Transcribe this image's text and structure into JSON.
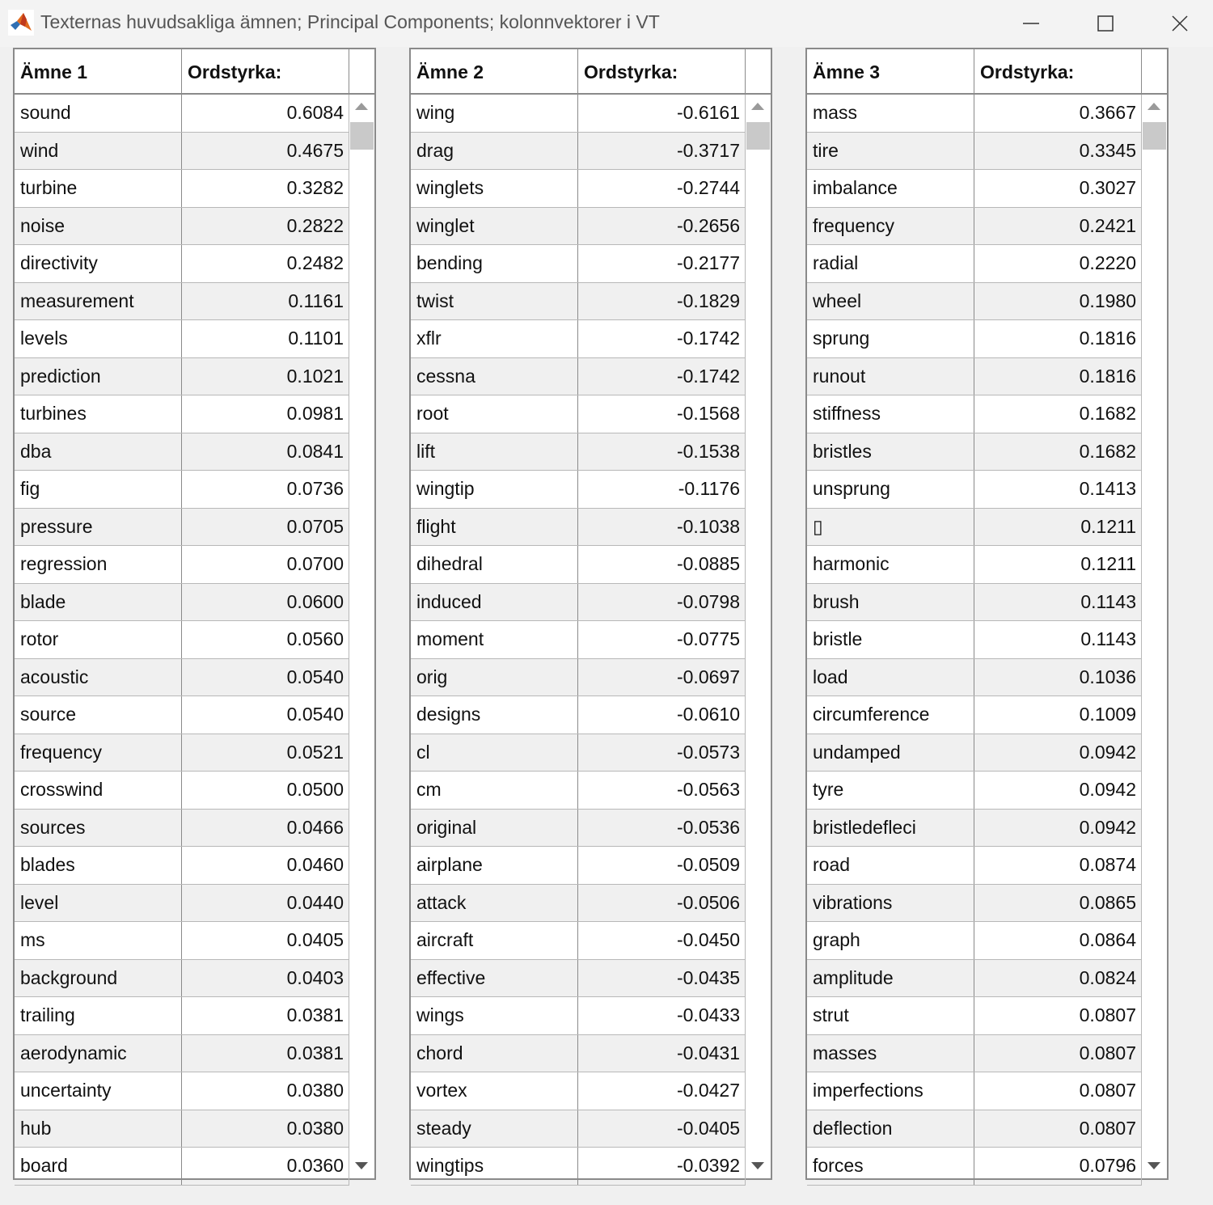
{
  "window": {
    "title": "Texternas huvudsakliga ämnen; Principal Components; kolonnvektorer i VT",
    "icons": [
      "matlab-logo-icon",
      "minimize-icon",
      "maximize-icon",
      "close-icon"
    ]
  },
  "tables": [
    {
      "headers": [
        "Ämne 1",
        "Ordstyrka:"
      ],
      "rows": [
        [
          "sound",
          "0.6084"
        ],
        [
          "wind",
          "0.4675"
        ],
        [
          "turbine",
          "0.3282"
        ],
        [
          "noise",
          "0.2822"
        ],
        [
          "directivity",
          "0.2482"
        ],
        [
          "measurement",
          "0.1161"
        ],
        [
          "levels",
          "0.1101"
        ],
        [
          "prediction",
          "0.1021"
        ],
        [
          "turbines",
          "0.0981"
        ],
        [
          "dba",
          "0.0841"
        ],
        [
          "fig",
          "0.0736"
        ],
        [
          "pressure",
          "0.0705"
        ],
        [
          "regression",
          "0.0700"
        ],
        [
          "blade",
          "0.0600"
        ],
        [
          "rotor",
          "0.0560"
        ],
        [
          "acoustic",
          "0.0540"
        ],
        [
          "source",
          "0.0540"
        ],
        [
          "frequency",
          "0.0521"
        ],
        [
          "crosswind",
          "0.0500"
        ],
        [
          "sources",
          "0.0466"
        ],
        [
          "blades",
          "0.0460"
        ],
        [
          "level",
          "0.0440"
        ],
        [
          "ms",
          "0.0405"
        ],
        [
          "background",
          "0.0403"
        ],
        [
          "trailing",
          "0.0381"
        ],
        [
          "aerodynamic",
          "0.0381"
        ],
        [
          "uncertainty",
          "0.0380"
        ],
        [
          "hub",
          "0.0380"
        ],
        [
          "board",
          "0.0360"
        ]
      ]
    },
    {
      "headers": [
        "Ämne 2",
        "Ordstyrka:"
      ],
      "rows": [
        [
          "wing",
          "-0.6161"
        ],
        [
          "drag",
          "-0.3717"
        ],
        [
          "winglets",
          "-0.2744"
        ],
        [
          "winglet",
          "-0.2656"
        ],
        [
          "bending",
          "-0.2177"
        ],
        [
          "twist",
          "-0.1829"
        ],
        [
          "xflr",
          "-0.1742"
        ],
        [
          "cessna",
          "-0.1742"
        ],
        [
          "root",
          "-0.1568"
        ],
        [
          "lift",
          "-0.1538"
        ],
        [
          "wingtip",
          "-0.1176"
        ],
        [
          "flight",
          "-0.1038"
        ],
        [
          "dihedral",
          "-0.0885"
        ],
        [
          "induced",
          "-0.0798"
        ],
        [
          "moment",
          "-0.0775"
        ],
        [
          "orig",
          "-0.0697"
        ],
        [
          "designs",
          "-0.0610"
        ],
        [
          "cl",
          "-0.0573"
        ],
        [
          "cm",
          "-0.0563"
        ],
        [
          "original",
          "-0.0536"
        ],
        [
          "airplane",
          "-0.0509"
        ],
        [
          "attack",
          "-0.0506"
        ],
        [
          "aircraft",
          "-0.0450"
        ],
        [
          "effective",
          "-0.0435"
        ],
        [
          "wings",
          "-0.0433"
        ],
        [
          "chord",
          "-0.0431"
        ],
        [
          "vortex",
          "-0.0427"
        ],
        [
          "steady",
          "-0.0405"
        ],
        [
          "wingtips",
          "-0.0392"
        ]
      ]
    },
    {
      "headers": [
        "Ämne 3",
        "Ordstyrka:"
      ],
      "rows": [
        [
          "mass",
          "0.3667"
        ],
        [
          "tire",
          "0.3345"
        ],
        [
          "imbalance",
          "0.3027"
        ],
        [
          "frequency",
          "0.2421"
        ],
        [
          "radial",
          "0.2220"
        ],
        [
          "wheel",
          "0.1980"
        ],
        [
          "sprung",
          "0.1816"
        ],
        [
          "runout",
          "0.1816"
        ],
        [
          "stiffness",
          "0.1682"
        ],
        [
          "bristles",
          "0.1682"
        ],
        [
          "unsprung",
          "0.1413"
        ],
        [
          "▯",
          "0.1211"
        ],
        [
          "harmonic",
          "0.1211"
        ],
        [
          "brush",
          "0.1143"
        ],
        [
          "bristle",
          "0.1143"
        ],
        [
          "load",
          "0.1036"
        ],
        [
          "circumference",
          "0.1009"
        ],
        [
          "undamped",
          "0.0942"
        ],
        [
          "tyre",
          "0.0942"
        ],
        [
          "bristledefleci",
          "0.0942"
        ],
        [
          "road",
          "0.0874"
        ],
        [
          "vibrations",
          "0.0865"
        ],
        [
          "graph",
          "0.0864"
        ],
        [
          "amplitude",
          "0.0824"
        ],
        [
          "strut",
          "0.0807"
        ],
        [
          "masses",
          "0.0807"
        ],
        [
          "imperfections",
          "0.0807"
        ],
        [
          "deflection",
          "0.0807"
        ],
        [
          "forces",
          "0.0796"
        ]
      ]
    }
  ]
}
